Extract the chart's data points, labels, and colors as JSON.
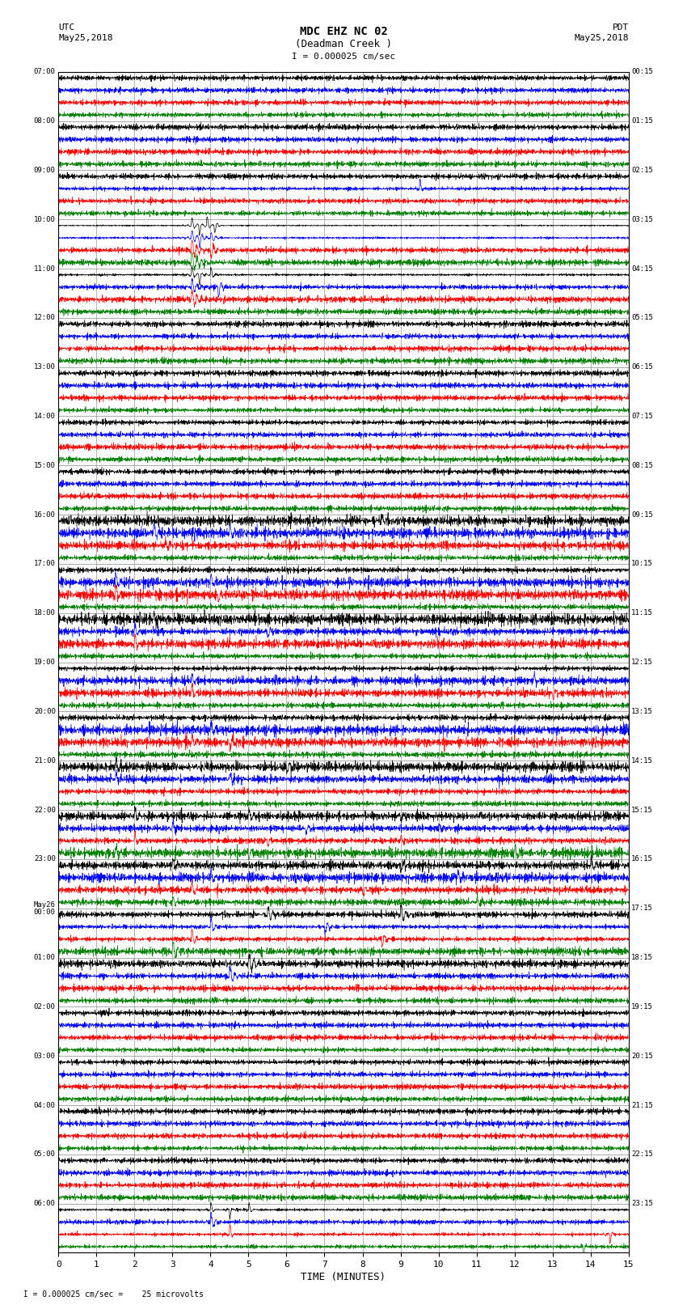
{
  "title_line1": "MDC EHZ NC 02",
  "title_line2": "(Deadman Creek )",
  "scale_text": "I = 0.000025 cm/sec",
  "footer_text": "  I = 0.000025 cm/sec =    25 microvolts",
  "left_label": "UTC",
  "left_date": "May25,2018",
  "right_label": "PDT",
  "right_date": "May25,2018",
  "xlabel": "TIME (MINUTES)",
  "xmin": 0,
  "xmax": 15,
  "xticks": [
    0,
    1,
    2,
    3,
    4,
    5,
    6,
    7,
    8,
    9,
    10,
    11,
    12,
    13,
    14,
    15
  ],
  "bg_color": "#ffffff",
  "trace_colors": [
    "black",
    "blue",
    "red",
    "green"
  ],
  "grid_color": "#aaaaaa",
  "num_rows": 36,
  "noise_seed": 12345
}
